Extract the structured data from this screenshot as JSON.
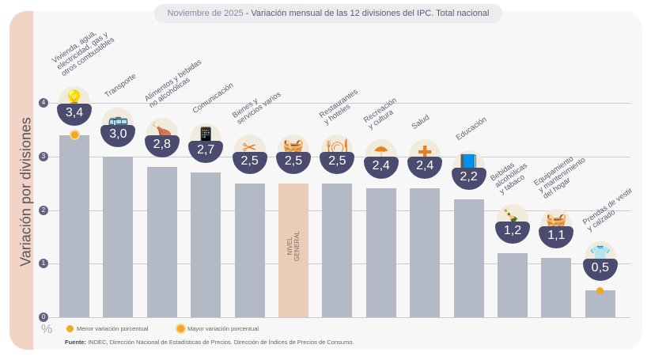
{
  "title": {
    "date": "Noviembre de 2025",
    "text": "Variación mensual de las 12 divisiones del IPC. Total nacional"
  },
  "legend": {
    "unit": "%",
    "min_label": "Menor variación porcentual",
    "max_label": "Mayor variación porcentual"
  },
  "source": {
    "label": "Fuente:",
    "text": "INDEC, Dirección Nacional de Estadísticas de Precios. Dirección de Índices de Precios de Consumo."
  },
  "colors": {
    "bar": "#b4b9c6",
    "general_bar": "#ebccb9",
    "badge": "#4b4b6f",
    "accent": "#f2a81d"
  },
  "chart_data": {
    "type": "bar",
    "ylabel": "Variación por divisiones",
    "ylim": [
      0,
      4
    ],
    "yticks": [
      "0",
      "1",
      "2",
      "3",
      "4"
    ],
    "grid": true,
    "categories": [
      "Vivienda, agua,\nelectricidad, gas y\notros combustibles",
      "Transporte",
      "Alimentos y bebidas\nno alcohólicas",
      "Comunicación",
      "Bienes y\nservicios varios",
      "NIVEL\nGENERAL",
      "Restaurantes\ny hoteles",
      "Recreación\ny cultura",
      "Salud",
      "Educación",
      "Bebidas\nalcohólicas\ny tabaco",
      "Equipamiento\ny mantenimiento\ndel hogar",
      "Prendas de vestir\ny calzado"
    ],
    "values": [
      3.4,
      3.0,
      2.8,
      2.7,
      2.5,
      2.5,
      2.5,
      2.4,
      2.4,
      2.2,
      1.2,
      1.1,
      0.5
    ],
    "value_labels": [
      "3,4",
      "3,0",
      "2,8",
      "2,7",
      "2,5",
      "2,5",
      "2,5",
      "2,4",
      "2,4",
      "2,2",
      "1,2",
      "1,1",
      "0,5"
    ],
    "icons": [
      "lightbulb-icon",
      "bus-icon",
      "food-icon",
      "phone-icon",
      "scissors-icon",
      "basket-icon",
      "restaurant-icon",
      "umbrella-icon",
      "health-icon",
      "book-icon",
      "bottle-icon",
      "appliance-icon",
      "shirt-icon"
    ],
    "highlight": {
      "max_index": 0,
      "min_index": 12
    }
  }
}
